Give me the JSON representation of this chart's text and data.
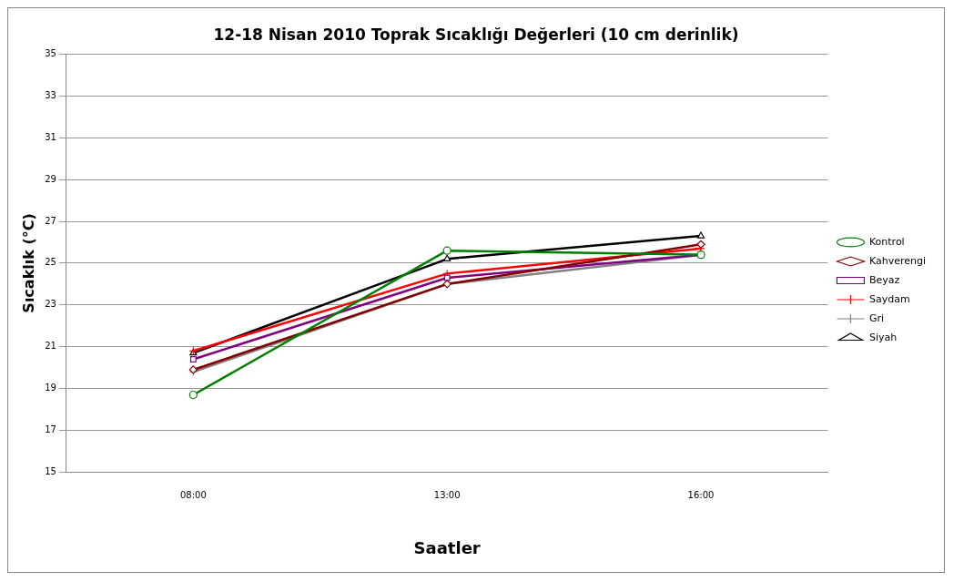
{
  "chart_data": {
    "type": "line",
    "title": "12-18 Nisan 2010 Toprak Sıcaklığı Değerleri (10 cm derinlik)",
    "xlabel": "Saatler",
    "ylabel": "Sıcaklık (°C)",
    "categories": [
      "08:00",
      "13:00",
      "16:00"
    ],
    "ylim": [
      15,
      35
    ],
    "yticks": [
      15,
      17,
      19,
      21,
      23,
      25,
      27,
      29,
      31,
      33,
      35
    ],
    "grid": "y",
    "legend": "right",
    "line_style": "solid",
    "series": [
      {
        "name": "Kontrol",
        "color": "#008000",
        "marker": "circle",
        "values": [
          18.7,
          25.6,
          25.4
        ]
      },
      {
        "name": "Kahverengi",
        "color": "#800000",
        "marker": "diamond",
        "values": [
          19.9,
          24.0,
          25.9
        ]
      },
      {
        "name": "Beyaz",
        "color": "#800080",
        "marker": "square",
        "values": [
          20.4,
          24.3,
          25.4
        ]
      },
      {
        "name": "Saydam",
        "color": "#ff0000",
        "marker": "cross",
        "values": [
          20.8,
          24.5,
          25.7
        ]
      },
      {
        "name": "Gri",
        "color": "#808080",
        "marker": "cross",
        "values": [
          19.8,
          24.0,
          25.4
        ]
      },
      {
        "name": "Siyah",
        "color": "#000000",
        "marker": "triangle",
        "values": [
          20.7,
          25.2,
          26.3
        ]
      }
    ]
  }
}
